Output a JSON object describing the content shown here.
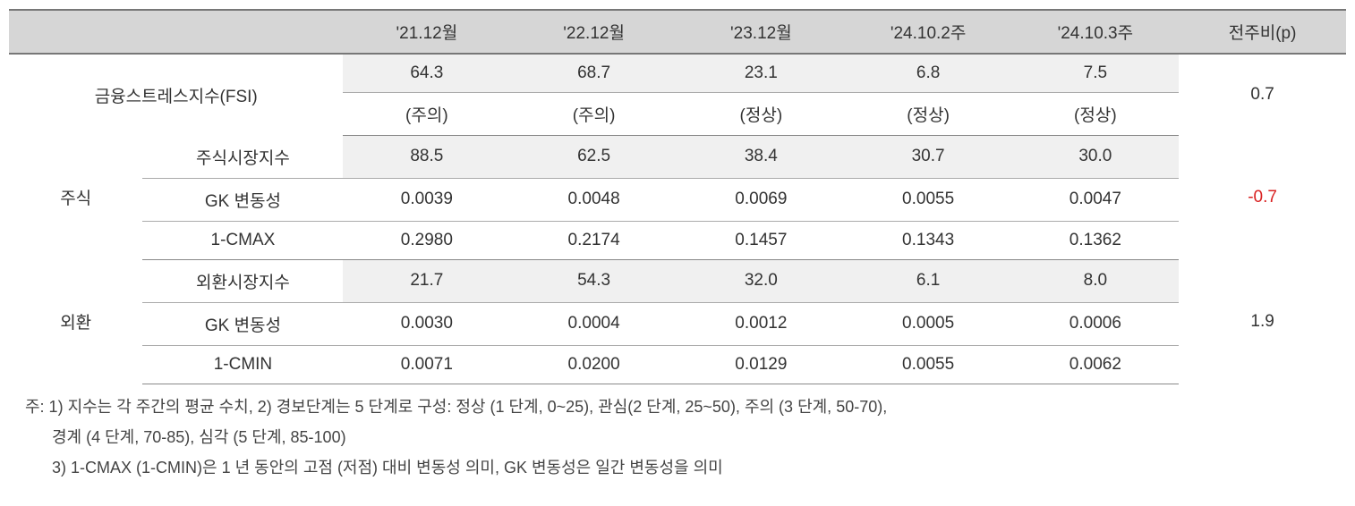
{
  "headers": {
    "blank": "",
    "c1": "'21.12월",
    "c2": "'22.12월",
    "c3": "'23.12월",
    "c4": "'24.10.2주",
    "c5": "'24.10.3주",
    "change": "전주비(p)"
  },
  "fsi": {
    "label": "금융스트레스지수(FSI)",
    "row1": {
      "c1": "64.3",
      "c2": "68.7",
      "c3": "23.1",
      "c4": "6.8",
      "c5": "7.5"
    },
    "row2": {
      "c1": "(주의)",
      "c2": "(주의)",
      "c3": "(정상)",
      "c4": "(정상)",
      "c5": "(정상)"
    },
    "change": "0.7"
  },
  "stock": {
    "group_label": "주식",
    "row1": {
      "label": "주식시장지수",
      "c1": "88.5",
      "c2": "62.5",
      "c3": "38.4",
      "c4": "30.7",
      "c5": "30.0"
    },
    "row2": {
      "label": "GK 변동성",
      "c1": "0.0039",
      "c2": "0.0048",
      "c3": "0.0069",
      "c4": "0.0055",
      "c5": "0.0047"
    },
    "row3": {
      "label": "1-CMAX",
      "c1": "0.2980",
      "c2": "0.2174",
      "c3": "0.1457",
      "c4": "0.1343",
      "c5": "0.1362"
    },
    "change": "-0.7"
  },
  "fx": {
    "group_label": "외환",
    "row1": {
      "label": "외환시장지수",
      "c1": "21.7",
      "c2": "54.3",
      "c3": "32.0",
      "c4": "6.1",
      "c5": "8.0"
    },
    "row2": {
      "label": "GK 변동성",
      "c1": "0.0030",
      "c2": "0.0004",
      "c3": "0.0012",
      "c4": "0.0005",
      "c5": "0.0006"
    },
    "row3": {
      "label": "1-CMIN",
      "c1": "0.0071",
      "c2": "0.0200",
      "c3": "0.0129",
      "c4": "0.0055",
      "c5": "0.0062"
    },
    "change": "1.9"
  },
  "footnotes": {
    "line1": "주: 1) 지수는 각 주간의 평균 수치, 2) 경보단계는 5 단계로 구성: 정상 (1 단계, 0~25), 관심(2 단계, 25~50), 주의 (3 단계, 50-70),",
    "line2": "경계 (4 단계, 70-85), 심각 (5 단계, 85-100)",
    "line3": "3) 1-CMAX (1-CMIN)은 1 년 동안의 고점 (저점) 대비 변동성 의미, GK 변동성은 일간 변동성을 의미"
  },
  "styling": {
    "header_bg": "#d6d6d6",
    "shaded_row_bg": "#f0f0f0",
    "negative_color": "#d92020",
    "text_color": "#333333",
    "border_color_heavy": "#888888",
    "border_color_light": "#aaaaaa",
    "font_size_pt": 19
  }
}
